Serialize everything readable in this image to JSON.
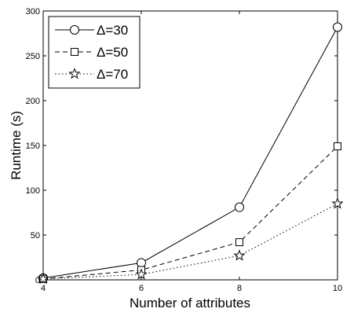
{
  "chart_data": {
    "type": "line",
    "xlabel": "Number of attributes",
    "ylabel": "Runtime (s)",
    "x": [
      4,
      6,
      8,
      10
    ],
    "xlim": [
      4,
      10
    ],
    "ylim": [
      0,
      300
    ],
    "xticks": [
      "4",
      "6",
      "8",
      "10"
    ],
    "yticks": [
      "0",
      "50",
      "100",
      "150",
      "200",
      "250",
      "300"
    ],
    "grid": false,
    "legend_position": "top-left",
    "series": [
      {
        "name": "Δ=30",
        "values": [
          2,
          19,
          81,
          282
        ],
        "marker": "circle",
        "linestyle": "solid"
      },
      {
        "name": "Δ=50",
        "values": [
          1,
          11,
          42,
          149
        ],
        "marker": "square",
        "linestyle": "dashed"
      },
      {
        "name": "Δ=70",
        "values": [
          1,
          6,
          27,
          85
        ],
        "marker": "star",
        "linestyle": "dotted"
      }
    ]
  }
}
